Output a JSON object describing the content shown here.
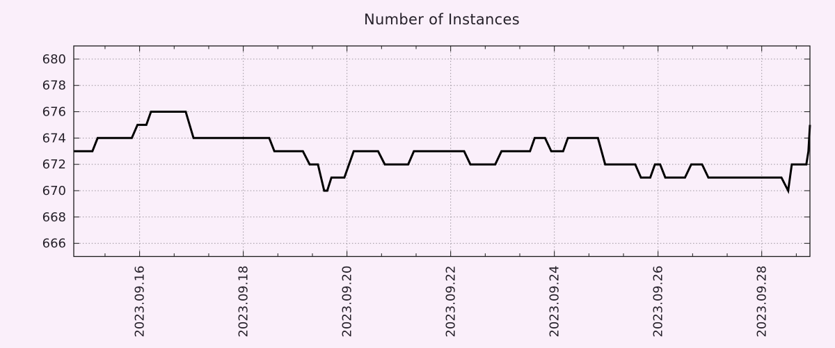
{
  "chart_data": {
    "type": "line",
    "title": "Number of Instances",
    "xlabel": "",
    "ylabel": "",
    "legend": null,
    "grid": true,
    "x_axis": {
      "unit": "date (September 2023, decimal day)",
      "tick_labels": [
        "2023.09.16",
        "2023.09.18",
        "2023.09.20",
        "2023.09.22",
        "2023.09.24",
        "2023.09.26",
        "2023.09.28"
      ],
      "tick_days": [
        16,
        18,
        20,
        22,
        24,
        26,
        28
      ],
      "minor_ticks_per_major_interval": 2,
      "range_days": [
        14.73,
        28.93
      ],
      "label_rotation_deg": -90
    },
    "y_axis": {
      "ticks": [
        666,
        668,
        670,
        672,
        674,
        676,
        678,
        680
      ],
      "range": [
        665,
        681
      ]
    },
    "series": [
      {
        "name": "instances",
        "points": [
          [
            14.73,
            673
          ],
          [
            15.09,
            673
          ],
          [
            15.19,
            674
          ],
          [
            15.85,
            674
          ],
          [
            15.96,
            675
          ],
          [
            16.13,
            675
          ],
          [
            16.22,
            676
          ],
          [
            16.89,
            676
          ],
          [
            17.04,
            674
          ],
          [
            18.5,
            674
          ],
          [
            18.6,
            673
          ],
          [
            19.15,
            673
          ],
          [
            19.28,
            672
          ],
          [
            19.44,
            672
          ],
          [
            19.56,
            670
          ],
          [
            19.62,
            670
          ],
          [
            19.7,
            671
          ],
          [
            19.95,
            671
          ],
          [
            20.13,
            673
          ],
          [
            20.6,
            673
          ],
          [
            20.73,
            672
          ],
          [
            21.18,
            672
          ],
          [
            21.29,
            673
          ],
          [
            22.26,
            673
          ],
          [
            22.38,
            672
          ],
          [
            22.86,
            672
          ],
          [
            22.98,
            673
          ],
          [
            23.53,
            673
          ],
          [
            23.62,
            674
          ],
          [
            23.82,
            674
          ],
          [
            23.94,
            673
          ],
          [
            24.17,
            673
          ],
          [
            24.26,
            674
          ],
          [
            24.84,
            674
          ],
          [
            24.98,
            672
          ],
          [
            25.56,
            672
          ],
          [
            25.67,
            671
          ],
          [
            25.85,
            671
          ],
          [
            25.94,
            672
          ],
          [
            26.04,
            672
          ],
          [
            26.14,
            671
          ],
          [
            26.52,
            671
          ],
          [
            26.64,
            672
          ],
          [
            26.85,
            672
          ],
          [
            26.97,
            671
          ],
          [
            28.38,
            671
          ],
          [
            28.51,
            670
          ],
          [
            28.58,
            672
          ],
          [
            28.86,
            672
          ],
          [
            28.9,
            673
          ],
          [
            28.93,
            675
          ]
        ]
      }
    ],
    "colors": {
      "background": "#faeffa",
      "line": "#000000",
      "grid": "#9b949d",
      "axis": "#1a1a1a",
      "text": "#241f28"
    }
  }
}
